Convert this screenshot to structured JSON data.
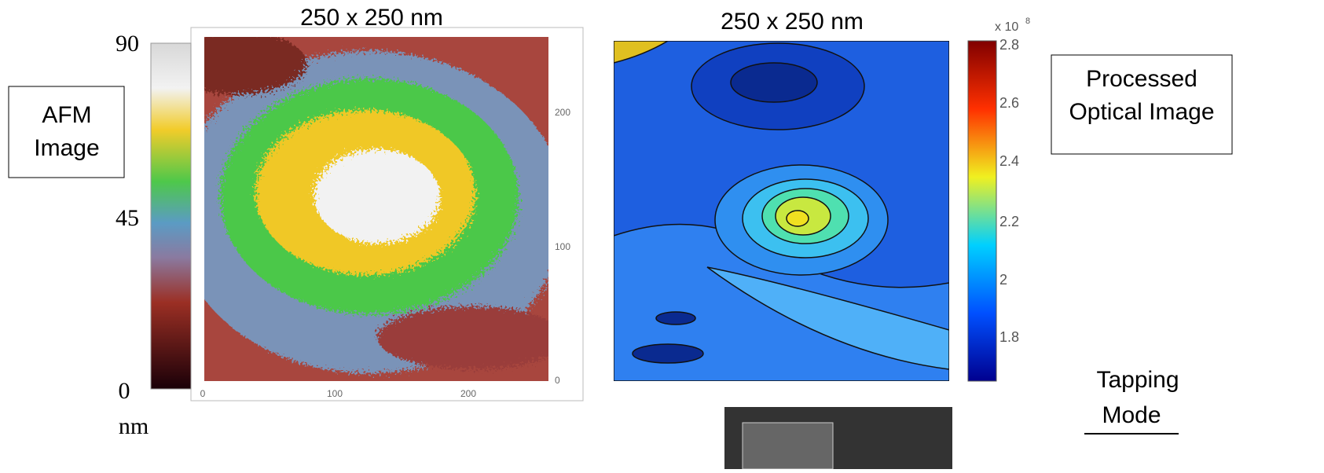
{
  "afm": {
    "title": "250 x 250 nm",
    "label": [
      "AFM",
      "Image"
    ],
    "colorbar_ticks": [
      "90",
      "45",
      "0"
    ],
    "unit": "nm",
    "x_ticks": [
      "0",
      "100",
      "200"
    ],
    "y_ticks": [
      "200",
      "100",
      "0"
    ]
  },
  "optical": {
    "title": "250 x 250 nm",
    "label": [
      "Processed",
      "Optical Image"
    ],
    "colorbar_multiplier": "x 10",
    "colorbar_exponent": "8",
    "colorbar_ticks": [
      "2.8",
      "2.6",
      "2.4",
      "2.2",
      "2",
      "1.8"
    ]
  },
  "mode": [
    "Tapping",
    "Mode"
  ]
}
